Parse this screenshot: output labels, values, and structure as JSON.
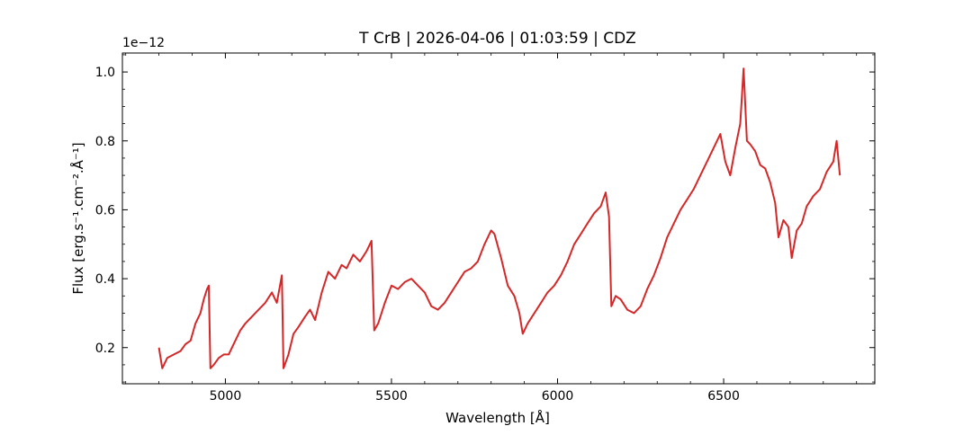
{
  "chart_data": {
    "type": "line",
    "title": "T CrB | 2026-04-06 | 01:03:59 | CDZ",
    "xlabel": "Wavelength [Å]",
    "ylabel": "Flux [erg.s⁻¹.cm⁻².Å⁻¹]",
    "y_offset_label": "1e−12",
    "xlim": [
      4690,
      6955
    ],
    "ylim": [
      0.095,
      1.055
    ],
    "xticks": [
      5000,
      5500,
      6000,
      6500
    ],
    "xtick_labels": [
      "5000",
      "5500",
      "6000",
      "6500"
    ],
    "yticks": [
      0.2,
      0.4,
      0.6,
      0.8,
      1.0
    ],
    "ytick_labels": [
      "0.2",
      "0.4",
      "0.6",
      "0.8",
      "1.0"
    ],
    "grid": false,
    "series": [
      {
        "color": "#d62728",
        "points": [
          [
            4800,
            0.2
          ],
          [
            4810,
            0.14
          ],
          [
            4825,
            0.17
          ],
          [
            4845,
            0.18
          ],
          [
            4865,
            0.19
          ],
          [
            4880,
            0.21
          ],
          [
            4895,
            0.22
          ],
          [
            4910,
            0.27
          ],
          [
            4925,
            0.3
          ],
          [
            4935,
            0.34
          ],
          [
            4945,
            0.37
          ],
          [
            4950,
            0.38
          ],
          [
            4955,
            0.14
          ],
          [
            4965,
            0.15
          ],
          [
            4980,
            0.17
          ],
          [
            4995,
            0.18
          ],
          [
            5010,
            0.18
          ],
          [
            5025,
            0.21
          ],
          [
            5045,
            0.25
          ],
          [
            5060,
            0.27
          ],
          [
            5080,
            0.29
          ],
          [
            5100,
            0.31
          ],
          [
            5120,
            0.33
          ],
          [
            5140,
            0.36
          ],
          [
            5155,
            0.33
          ],
          [
            5170,
            0.41
          ],
          [
            5175,
            0.14
          ],
          [
            5190,
            0.18
          ],
          [
            5205,
            0.24
          ],
          [
            5220,
            0.26
          ],
          [
            5240,
            0.29
          ],
          [
            5255,
            0.31
          ],
          [
            5270,
            0.28
          ],
          [
            5290,
            0.36
          ],
          [
            5310,
            0.42
          ],
          [
            5330,
            0.4
          ],
          [
            5350,
            0.44
          ],
          [
            5365,
            0.43
          ],
          [
            5385,
            0.47
          ],
          [
            5405,
            0.45
          ],
          [
            5425,
            0.48
          ],
          [
            5440,
            0.51
          ],
          [
            5448,
            0.25
          ],
          [
            5460,
            0.27
          ],
          [
            5480,
            0.33
          ],
          [
            5500,
            0.38
          ],
          [
            5520,
            0.37
          ],
          [
            5540,
            0.39
          ],
          [
            5560,
            0.4
          ],
          [
            5580,
            0.38
          ],
          [
            5600,
            0.36
          ],
          [
            5620,
            0.32
          ],
          [
            5640,
            0.31
          ],
          [
            5660,
            0.33
          ],
          [
            5680,
            0.36
          ],
          [
            5700,
            0.39
          ],
          [
            5720,
            0.42
          ],
          [
            5740,
            0.43
          ],
          [
            5760,
            0.45
          ],
          [
            5780,
            0.5
          ],
          [
            5800,
            0.54
          ],
          [
            5810,
            0.53
          ],
          [
            5830,
            0.46
          ],
          [
            5850,
            0.38
          ],
          [
            5870,
            0.35
          ],
          [
            5885,
            0.3
          ],
          [
            5895,
            0.24
          ],
          [
            5910,
            0.27
          ],
          [
            5930,
            0.3
          ],
          [
            5950,
            0.33
          ],
          [
            5970,
            0.36
          ],
          [
            5990,
            0.38
          ],
          [
            6010,
            0.41
          ],
          [
            6030,
            0.45
          ],
          [
            6050,
            0.5
          ],
          [
            6070,
            0.53
          ],
          [
            6090,
            0.56
          ],
          [
            6110,
            0.59
          ],
          [
            6130,
            0.61
          ],
          [
            6145,
            0.65
          ],
          [
            6155,
            0.58
          ],
          [
            6162,
            0.32
          ],
          [
            6175,
            0.35
          ],
          [
            6190,
            0.34
          ],
          [
            6210,
            0.31
          ],
          [
            6230,
            0.3
          ],
          [
            6250,
            0.32
          ],
          [
            6270,
            0.37
          ],
          [
            6290,
            0.41
          ],
          [
            6310,
            0.46
          ],
          [
            6330,
            0.52
          ],
          [
            6350,
            0.56
          ],
          [
            6370,
            0.6
          ],
          [
            6390,
            0.63
          ],
          [
            6410,
            0.66
          ],
          [
            6430,
            0.7
          ],
          [
            6450,
            0.74
          ],
          [
            6470,
            0.78
          ],
          [
            6490,
            0.82
          ],
          [
            6505,
            0.74
          ],
          [
            6520,
            0.7
          ],
          [
            6535,
            0.78
          ],
          [
            6550,
            0.85
          ],
          [
            6560,
            1.01
          ],
          [
            6570,
            0.8
          ],
          [
            6580,
            0.79
          ],
          [
            6595,
            0.77
          ],
          [
            6610,
            0.73
          ],
          [
            6625,
            0.72
          ],
          [
            6640,
            0.68
          ],
          [
            6655,
            0.62
          ],
          [
            6665,
            0.52
          ],
          [
            6680,
            0.57
          ],
          [
            6695,
            0.55
          ],
          [
            6705,
            0.46
          ],
          [
            6720,
            0.54
          ],
          [
            6735,
            0.56
          ],
          [
            6750,
            0.61
          ],
          [
            6770,
            0.64
          ],
          [
            6790,
            0.66
          ],
          [
            6810,
            0.71
          ],
          [
            6830,
            0.74
          ],
          [
            6840,
            0.8
          ],
          [
            6850,
            0.7
          ]
        ]
      }
    ]
  }
}
